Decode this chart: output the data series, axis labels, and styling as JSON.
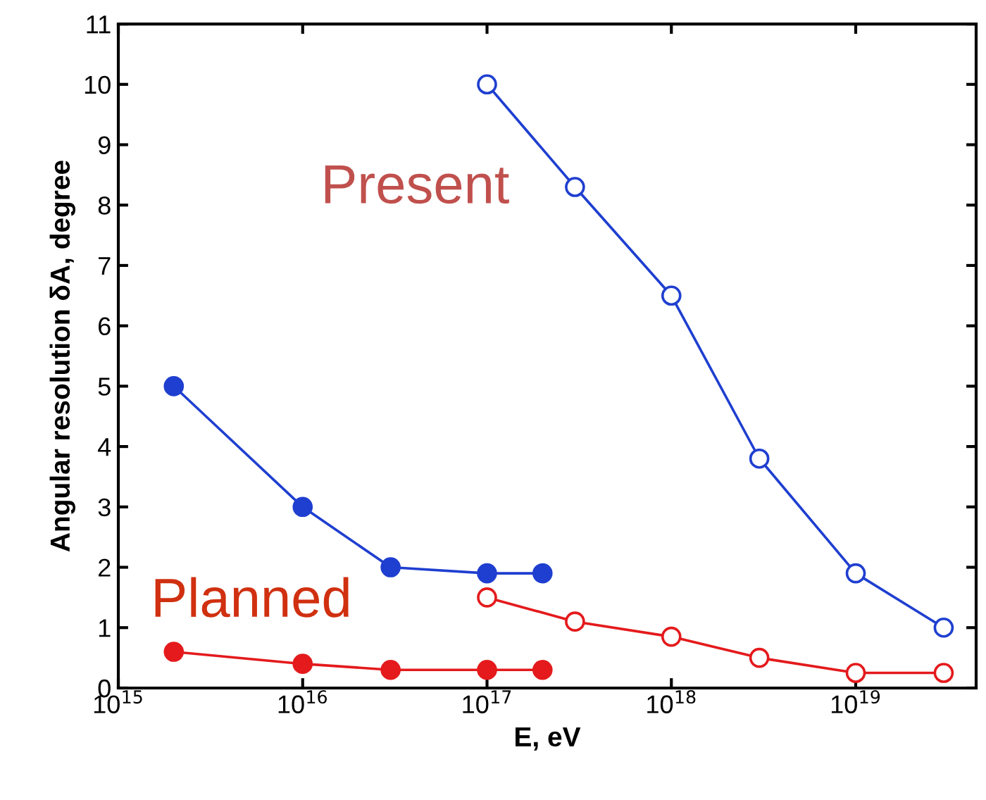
{
  "chart_data": {
    "type": "line",
    "xlabel": "E, eV",
    "ylabel": "Angular resolution δA, degree",
    "log": "x",
    "marker": "circle",
    "grid": false,
    "legend": false,
    "xlim": [
      1000000000000000.0,
      4.5e+19
    ],
    "xticks": [
      {
        "value": 1000000000000000.0,
        "label": "10$^{15}$"
      },
      {
        "value": 1e+16,
        "label": "10$^{16}$"
      },
      {
        "value": 1e+17,
        "label": "10$^{17}$"
      },
      {
        "value": 1e+18,
        "label": "10$^{18}$"
      },
      {
        "value": 1e+19,
        "label": "10$^{19}$"
      }
    ],
    "ylim": [
      0,
      11
    ],
    "yticks": [
      0,
      1,
      2,
      3,
      4,
      5,
      6,
      7,
      8,
      9,
      10,
      11
    ],
    "series": [
      {
        "color": "#1f3fd0",
        "x": [
          2000000000000000.0,
          1e+16,
          3e+16,
          1e+17,
          2e+17
        ],
        "values": [
          5.0,
          3.0,
          2.0,
          1.9,
          1.9
        ]
      },
      {
        "color": "#e41a1c",
        "x": [
          2000000000000000.0,
          1e+16,
          3e+16,
          1e+17,
          2e+17
        ],
        "values": [
          0.6,
          0.4,
          0.3,
          0.3,
          0.3
        ]
      },
      {
        "color": "#1f3fd0",
        "x": [
          1e+17,
          3e+17,
          1e+18,
          3e+18,
          1e+19,
          3e+19
        ],
        "values": [
          10.0,
          8.3,
          6.5,
          3.8,
          1.9,
          1.0
        ]
      },
      {
        "color": "#e41a1c",
        "x": [
          1e+17,
          3e+17,
          1e+18,
          3e+18,
          1e+19,
          3e+19
        ],
        "values": [
          1.5,
          1.1,
          0.85,
          0.5,
          0.25,
          0.25
        ]
      }
    ],
    "annotations": [
      "Present",
      "Planned"
    ]
  }
}
